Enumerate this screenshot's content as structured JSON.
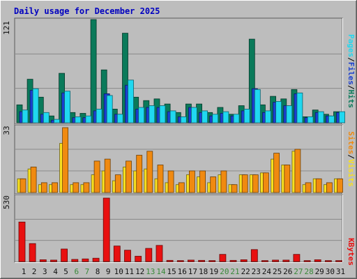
{
  "title": "Daily usage for December 2025",
  "colors": {
    "hits": "#0a7a5a",
    "files": "#1a3fd0",
    "pages": "#20d8f0",
    "visits": "#f08a10",
    "sites": "#f8e020",
    "kbytes": "#e81010",
    "weekend_day": "#3a8a3a",
    "weekday_day": "#111111",
    "title": "#0000c0"
  },
  "chart_data": [
    {
      "type": "bar",
      "title": "Hits / Files / Pages",
      "ymax_label": "121",
      "ylim": [
        0,
        121
      ],
      "axis_label_parts": [
        "Pages",
        "/",
        "Files",
        "/",
        "Hits"
      ],
      "categories": [
        "1",
        "2",
        "3",
        "4",
        "5",
        "6",
        "7",
        "8",
        "9",
        "10",
        "11",
        "12",
        "13",
        "14",
        "15",
        "16",
        "17",
        "18",
        "19",
        "20",
        "21",
        "22",
        "23",
        "24",
        "25",
        "26",
        "27",
        "28",
        "29",
        "30",
        "31"
      ],
      "weekend": [
        "6",
        "7",
        "13",
        "14",
        "20",
        "21",
        "27",
        "28"
      ],
      "series": [
        {
          "name": "Hits",
          "values": [
            21,
            51,
            30,
            8,
            58,
            12,
            11,
            121,
            62,
            16,
            105,
            30,
            26,
            28,
            22,
            12,
            22,
            22,
            12,
            18,
            10,
            20,
            98,
            21,
            31,
            28,
            39,
            7,
            15,
            10,
            13
          ]
        },
        {
          "name": "Files",
          "values": [
            13,
            38,
            10,
            3,
            35,
            6,
            6,
            14,
            34,
            10,
            44,
            16,
            18,
            18,
            13,
            7,
            18,
            12,
            8,
            11,
            8,
            14,
            40,
            12,
            24,
            20,
            34,
            6,
            12,
            8,
            12
          ]
        },
        {
          "name": "Pages",
          "values": [
            15,
            40,
            12,
            4,
            37,
            7,
            8,
            16,
            32,
            10,
            50,
            18,
            20,
            20,
            14,
            7,
            18,
            14,
            10,
            13,
            10,
            16,
            39,
            14,
            25,
            20,
            35,
            7,
            13,
            8,
            13
          ]
        }
      ]
    },
    {
      "type": "bar",
      "title": "Visits / Sites",
      "ymax_label": "33",
      "ylim": [
        0,
        33
      ],
      "axis_label_parts": [
        "Sites",
        "/",
        "Visits"
      ],
      "categories": [
        "1",
        "2",
        "3",
        "4",
        "5",
        "6",
        "7",
        "8",
        "9",
        "10",
        "11",
        "12",
        "13",
        "14",
        "15",
        "16",
        "17",
        "18",
        "19",
        "20",
        "21",
        "22",
        "23",
        "24",
        "25",
        "26",
        "27",
        "28",
        "29",
        "30",
        "31"
      ],
      "series": [
        {
          "name": "Sites",
          "values": [
            7,
            12,
            4,
            4,
            25,
            4,
            4,
            9,
            11,
            6,
            13,
            11,
            12,
            7,
            5,
            4,
            9,
            8,
            5,
            9,
            4,
            9,
            9,
            10,
            17,
            14,
            21,
            4,
            7,
            4,
            7
          ]
        },
        {
          "name": "Visits",
          "values": [
            7,
            13,
            5,
            5,
            33,
            5,
            5,
            16,
            17,
            9,
            16,
            19,
            21,
            14,
            11,
            5,
            11,
            11,
            8,
            11,
            4,
            9,
            9,
            10,
            20,
            14,
            22,
            5,
            7,
            5,
            7
          ]
        }
      ]
    },
    {
      "type": "bar",
      "title": "KBytes",
      "ymax_label": "530",
      "ylim": [
        0,
        530
      ],
      "axis_label_parts": [
        "KBytes"
      ],
      "categories": [
        "1",
        "2",
        "3",
        "4",
        "5",
        "6",
        "7",
        "8",
        "9",
        "10",
        "11",
        "12",
        "13",
        "14",
        "15",
        "16",
        "17",
        "18",
        "19",
        "20",
        "21",
        "22",
        "23",
        "24",
        "25",
        "26",
        "27",
        "28",
        "29",
        "30",
        "31"
      ],
      "series": [
        {
          "name": "KBytes",
          "values": [
            330,
            150,
            15,
            12,
            105,
            18,
            22,
            28,
            530,
            130,
            95,
            45,
            110,
            135,
            10,
            8,
            12,
            10,
            8,
            60,
            10,
            15,
            100,
            8,
            12,
            12,
            60,
            8,
            15,
            8,
            8
          ]
        }
      ]
    }
  ]
}
